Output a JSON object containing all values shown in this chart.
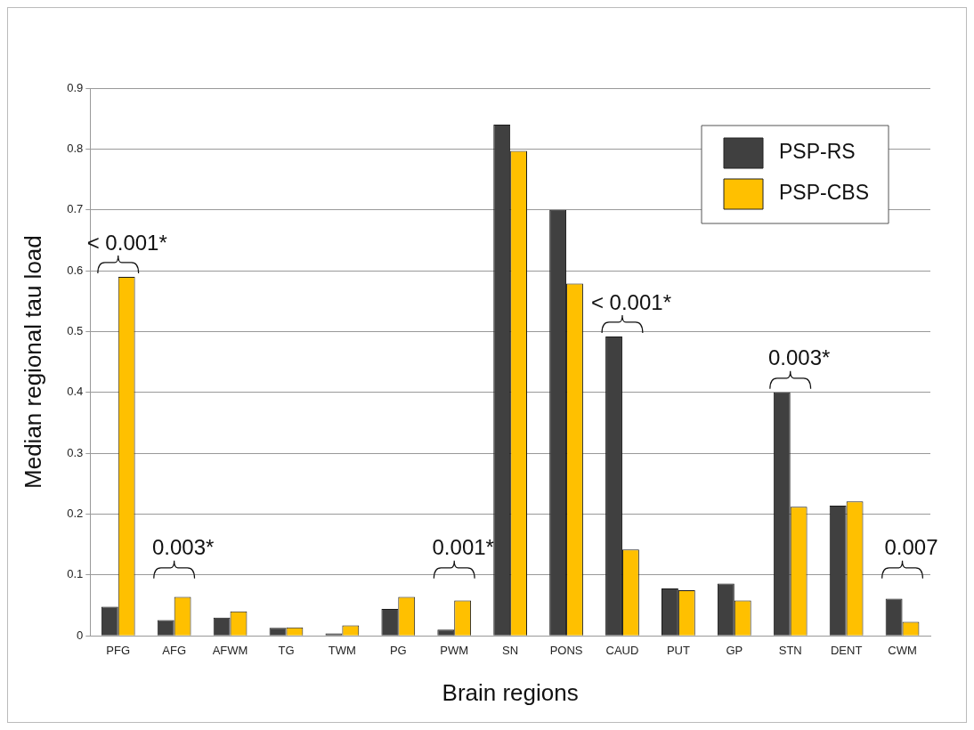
{
  "chart_data": {
    "type": "bar",
    "xlabel": "Brain regions",
    "ylabel": "Median regional tau load",
    "categories": [
      "PFG",
      "AFG",
      "AFWM",
      "TG",
      "TWM",
      "PG",
      "PWM",
      "SN",
      "PONS",
      "CAUD",
      "PUT",
      "GP",
      "STN",
      "DENT",
      "CWM"
    ],
    "series": [
      {
        "name": "PSP-RS",
        "color": "#404040",
        "values": [
          0.048,
          0.026,
          0.03,
          0.013,
          0.004,
          0.044,
          0.01,
          0.84,
          0.7,
          0.492,
          0.078,
          0.086,
          0.4,
          0.214,
          0.061
        ]
      },
      {
        "name": "PSP-CBS",
        "color": "#ffc000",
        "values": [
          0.59,
          0.064,
          0.04,
          0.014,
          0.017,
          0.064,
          0.058,
          0.797,
          0.579,
          0.142,
          0.075,
          0.058,
          0.212,
          0.221,
          0.023
        ]
      }
    ],
    "ylim": [
      0,
      0.9
    ],
    "yticks": [
      0,
      0.1,
      0.2,
      0.3,
      0.4,
      0.5,
      0.6,
      0.7,
      0.8,
      0.9
    ],
    "grid": "y",
    "legend": "top right",
    "annotations": [
      "< 0.001*",
      "0.003*",
      "0.001*",
      "< 0.001*",
      "0.003*",
      "0.007"
    ]
  }
}
